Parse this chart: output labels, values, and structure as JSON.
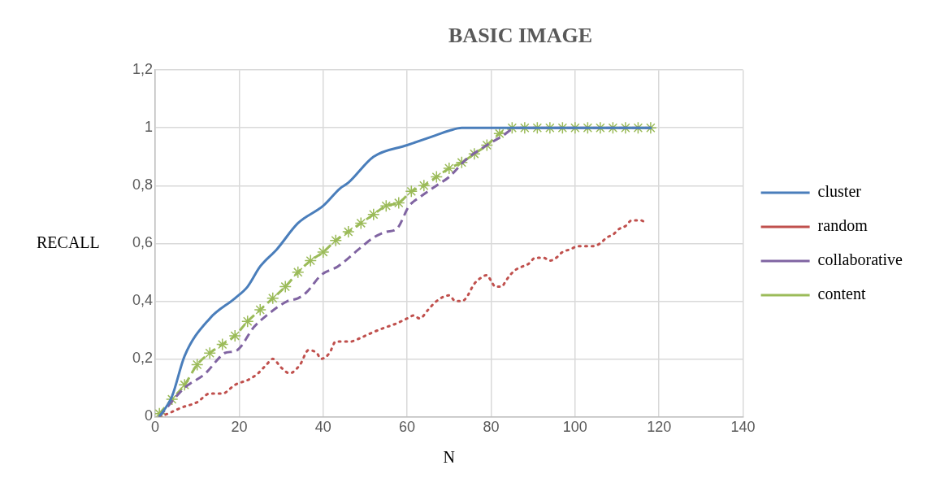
{
  "chart_data": {
    "type": "line",
    "title": "BASIC IMAGE",
    "xlabel": "N",
    "ylabel": "RECALL",
    "xlim": [
      0,
      140
    ],
    "xticks": [
      0,
      20,
      40,
      60,
      80,
      100,
      120,
      140
    ],
    "ylim": [
      0,
      1.2
    ],
    "yticks": [
      0,
      {
        "value": 0.2,
        "label": "0,2"
      },
      {
        "value": 0.4,
        "label": "0,4"
      },
      {
        "value": 0.6,
        "label": "0,6"
      },
      {
        "value": 0.8,
        "label": "0,8"
      },
      1,
      {
        "value": 1.2,
        "label": "1,2"
      }
    ],
    "grid": true,
    "legend": "right",
    "series": [
      {
        "name": "cluster",
        "color": "#4a7ebb",
        "line_style": "solid",
        "marker": "none",
        "x": [
          1,
          4,
          7,
          13,
          19,
          22,
          25,
          29,
          34,
          40,
          44,
          46,
          52,
          60,
          66,
          70,
          73,
          85,
          118
        ],
        "values": [
          0,
          0.07,
          0.21,
          0.34,
          0.41,
          0.45,
          0.52,
          0.58,
          0.67,
          0.73,
          0.79,
          0.81,
          0.9,
          0.94,
          0.97,
          0.99,
          1,
          1,
          1
        ]
      },
      {
        "name": "random",
        "color": "#c0504d",
        "line_style": "dotted",
        "marker": "none",
        "x": [
          1,
          3,
          6,
          10,
          13,
          16,
          19,
          22.5,
          24.5,
          26.5,
          28,
          30,
          32,
          34.5,
          36.5,
          38.5,
          39.5,
          41.5,
          43,
          46.5,
          48.5,
          51.5,
          55,
          57,
          60,
          61.5,
          63,
          65,
          67,
          70,
          71.5,
          73,
          74,
          76,
          77.5,
          79,
          80,
          81,
          82.5,
          83.5,
          84.5,
          86,
          87.5,
          89,
          90.5,
          92.5,
          94,
          95.5,
          97,
          99,
          100.5,
          102.5,
          104,
          106,
          107.5,
          109,
          110.5,
          112,
          113.5,
          115.5,
          117
        ],
        "values": [
          0,
          0.01,
          0.03,
          0.05,
          0.08,
          0.08,
          0.11,
          0.13,
          0.15,
          0.18,
          0.2,
          0.17,
          0.15,
          0.18,
          0.23,
          0.22,
          0.2,
          0.22,
          0.26,
          0.26,
          0.27,
          0.29,
          0.31,
          0.32,
          0.34,
          0.35,
          0.34,
          0.37,
          0.4,
          0.42,
          0.4,
          0.4,
          0.41,
          0.46,
          0.48,
          0.49,
          0.47,
          0.45,
          0.45,
          0.47,
          0.49,
          0.51,
          0.52,
          0.53,
          0.55,
          0.55,
          0.54,
          0.55,
          0.57,
          0.58,
          0.59,
          0.59,
          0.59,
          0.6,
          0.62,
          0.63,
          0.65,
          0.66,
          0.68,
          0.68,
          0.67
        ]
      },
      {
        "name": "collaborative",
        "color": "#8064a2",
        "line_style": "dashed",
        "marker": "none",
        "x": [
          1,
          7,
          12,
          15,
          16.5,
          19.5,
          23.5,
          26.5,
          31.5,
          34,
          36,
          39.5,
          43.5,
          48.5,
          52,
          55,
          57.5,
          60.5,
          63,
          67,
          70,
          74,
          79,
          82.5,
          86,
          118
        ],
        "values": [
          0,
          0.1,
          0.15,
          0.2,
          0.22,
          0.23,
          0.31,
          0.35,
          0.4,
          0.41,
          0.43,
          0.49,
          0.52,
          0.58,
          0.62,
          0.64,
          0.65,
          0.73,
          0.76,
          0.8,
          0.83,
          0.89,
          0.94,
          0.97,
          1,
          1
        ]
      },
      {
        "name": "content",
        "color": "#9bbb59",
        "line_style": "dashed",
        "marker": "cross",
        "x": [
          1,
          4,
          7,
          10,
          13,
          16,
          19,
          22,
          25,
          28,
          31,
          34,
          37,
          40,
          43,
          46,
          49,
          52,
          55,
          58,
          61,
          64,
          67,
          70,
          73,
          76,
          79,
          82,
          85,
          88,
          91,
          94,
          97,
          100,
          103,
          106,
          109,
          112,
          115,
          118
        ],
        "values": [
          0.01,
          0.06,
          0.11,
          0.18,
          0.22,
          0.25,
          0.28,
          0.33,
          0.37,
          0.41,
          0.45,
          0.5,
          0.54,
          0.57,
          0.61,
          0.64,
          0.67,
          0.7,
          0.73,
          0.74,
          0.78,
          0.8,
          0.83,
          0.86,
          0.88,
          0.91,
          0.94,
          0.98,
          1,
          1,
          1,
          1,
          1,
          1,
          1,
          1,
          1,
          1,
          1,
          1
        ]
      }
    ]
  }
}
